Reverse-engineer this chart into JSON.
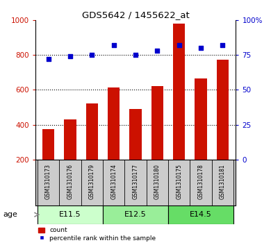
{
  "title": "GDS5642 / 1455622_at",
  "samples": [
    "GSM1310173",
    "GSM1310176",
    "GSM1310179",
    "GSM1310174",
    "GSM1310177",
    "GSM1310180",
    "GSM1310175",
    "GSM1310178",
    "GSM1310181"
  ],
  "counts": [
    375,
    430,
    520,
    615,
    490,
    620,
    980,
    665,
    775
  ],
  "percentiles": [
    72,
    74,
    75,
    82,
    75,
    78,
    82,
    80,
    82
  ],
  "groups": [
    {
      "label": "E11.5",
      "color": "#ccffcc"
    },
    {
      "label": "E12.5",
      "color": "#99ee99"
    },
    {
      "label": "E14.5",
      "color": "#66dd66"
    }
  ],
  "bar_color": "#cc1100",
  "dot_color": "#0000cc",
  "left_axis_color": "#cc1100",
  "right_axis_color": "#0000cc",
  "ylim_left": [
    200,
    1000
  ],
  "ylim_right": [
    0,
    100
  ],
  "yticks_left": [
    200,
    400,
    600,
    800,
    1000
  ],
  "yticks_right": [
    0,
    25,
    50,
    75,
    100
  ],
  "grid_values": [
    400,
    600,
    800
  ],
  "background_color": "#ffffff",
  "sample_area_color": "#cccccc",
  "age_label": "age"
}
